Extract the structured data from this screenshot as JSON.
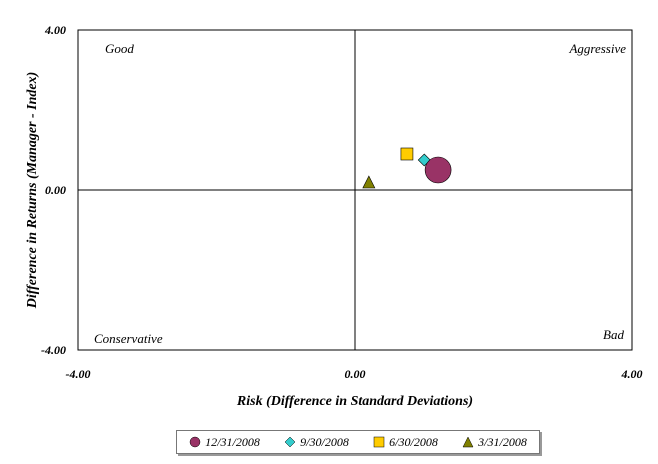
{
  "chart_data": {
    "type": "scatter",
    "xlabel": "Risk (Difference in Standard Deviations)",
    "ylabel": "Difference in Returns (Manager - Index)",
    "xlim": [
      -4,
      4
    ],
    "ylim": [
      -4,
      4
    ],
    "x_ticks": [
      "-4.00",
      "0.00",
      "4.00"
    ],
    "y_ticks": [
      "4.00",
      "0.00",
      "-4.00"
    ],
    "grid": false,
    "legend_position": "bottom",
    "quadrant_labels": {
      "top_left": "Good",
      "top_right": "Aggressive",
      "bottom_left": "Conservative",
      "bottom_right": "Bad"
    },
    "series": [
      {
        "name": "12/31/2008",
        "marker": "circle",
        "color": "#993366",
        "x": 1.2,
        "y": 0.5
      },
      {
        "name": "9/30/2008",
        "marker": "diamond",
        "color": "#33CCCC",
        "x": 1.0,
        "y": 0.75
      },
      {
        "name": "6/30/2008",
        "marker": "square",
        "color": "#FFCC00",
        "x": 0.75,
        "y": 0.9
      },
      {
        "name": "3/31/2008",
        "marker": "triangle",
        "color": "#808000",
        "x": 0.2,
        "y": 0.2
      }
    ]
  }
}
